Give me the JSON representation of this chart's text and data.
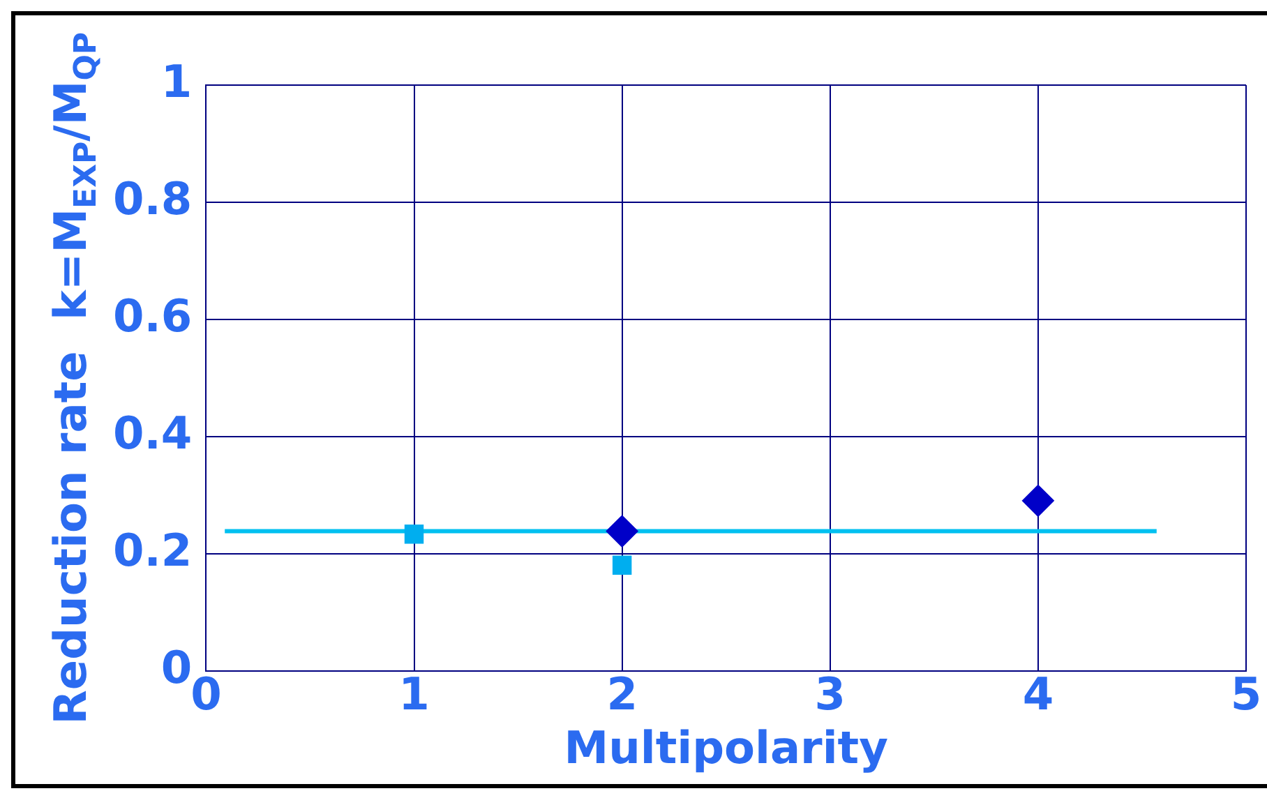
{
  "chart_data": {
    "type": "scatter",
    "xlabel": "Multipolarity",
    "ylabel": "Reduction rate  k=M$_{EXP}$/M$_{QP}$",
    "xlim": [
      0,
      5
    ],
    "xticks": [
      0,
      1,
      2,
      3,
      4,
      5
    ],
    "ylim": [
      0,
      1
    ],
    "yticks": [
      0,
      {
        "value": 0.2,
        "label": "0.2"
      },
      {
        "value": 0.4,
        "label": "0.4"
      },
      {
        "value": 0.6,
        "label": "0.6"
      },
      {
        "value": 0.8,
        "label": "0.8"
      },
      1
    ],
    "grid": true,
    "series": [
      {
        "type": "scatter",
        "marker": "square",
        "color": "#00aeef",
        "x": [
          1,
          2
        ],
        "values": [
          0.234,
          0.181
        ]
      },
      {
        "type": "scatter",
        "marker": "diamond",
        "color": "#0000c8",
        "x": [
          2,
          4
        ],
        "values": [
          0.239,
          0.291
        ]
      },
      {
        "type": "line",
        "marker": "none",
        "color": "#00c0f0",
        "x": [
          0.09,
          4.57
        ],
        "values": [
          0.239,
          0.239
        ]
      }
    ]
  }
}
